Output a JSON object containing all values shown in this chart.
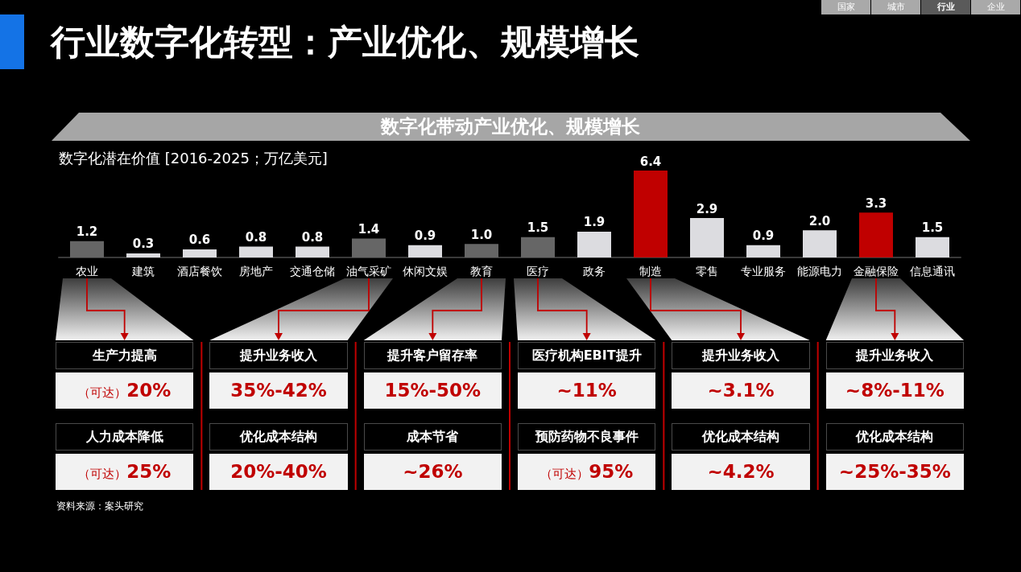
{
  "chart_data": {
    "type": "bar",
    "title": "行业数字化转型：产业优化、规模增长",
    "subtitle": "数字化带动产业优化、规模增长",
    "ylabel": "数字化潜在价值 [2016-2025；万亿美元]",
    "categories": [
      "农业",
      "建筑",
      "酒店餐饮",
      "房地产",
      "交通仓储",
      "油气采矿",
      "休闲文娱",
      "教育",
      "医疗",
      "政务",
      "制造",
      "零售",
      "专业服务",
      "能源电力",
      "金融保险",
      "信息通讯"
    ],
    "values": [
      1.2,
      0.3,
      0.6,
      0.8,
      0.8,
      1.4,
      0.9,
      1.0,
      1.5,
      1.9,
      6.4,
      2.9,
      0.9,
      2.0,
      3.3,
      1.5
    ],
    "value_labels": [
      "1.2",
      "0.3",
      "0.6",
      "0.8",
      "0.8",
      "1.4",
      "0.9",
      "1.0",
      "1.5",
      "1.9",
      "6.4",
      "2.9",
      "0.9",
      "2.0",
      "3.3",
      "1.5"
    ],
    "colors": [
      "#666666",
      "#dcdce0",
      "#dcdce0",
      "#dcdce0",
      "#dcdce0",
      "#666666",
      "#dcdce0",
      "#666666",
      "#666666",
      "#dcdce0",
      "#c00000",
      "#dcdce0",
      "#dcdce0",
      "#dcdce0",
      "#c00000",
      "#dcdce0"
    ],
    "annotations": [
      "生产力提高",
      "（可达）20%",
      "人力成本降低",
      "（可达）25%",
      "提升业务收入",
      "35%-42%",
      "优化成本结构",
      "20%-40%",
      "提升客户留存率",
      "15%-50%",
      "成本节省",
      "~26%",
      "医疗机构EBIT提升",
      "~11%",
      "预防药物不良事件",
      "（可达）95%",
      "提升业务收入",
      "~3.1%",
      "优化成本结构",
      "~4.2%",
      "提升业务收入",
      "~8%-11%",
      "优化成本结构",
      "~25%-35%",
      "国家",
      "城市",
      "行业",
      "企业",
      "资料来源：案头研究"
    ]
  }
}
